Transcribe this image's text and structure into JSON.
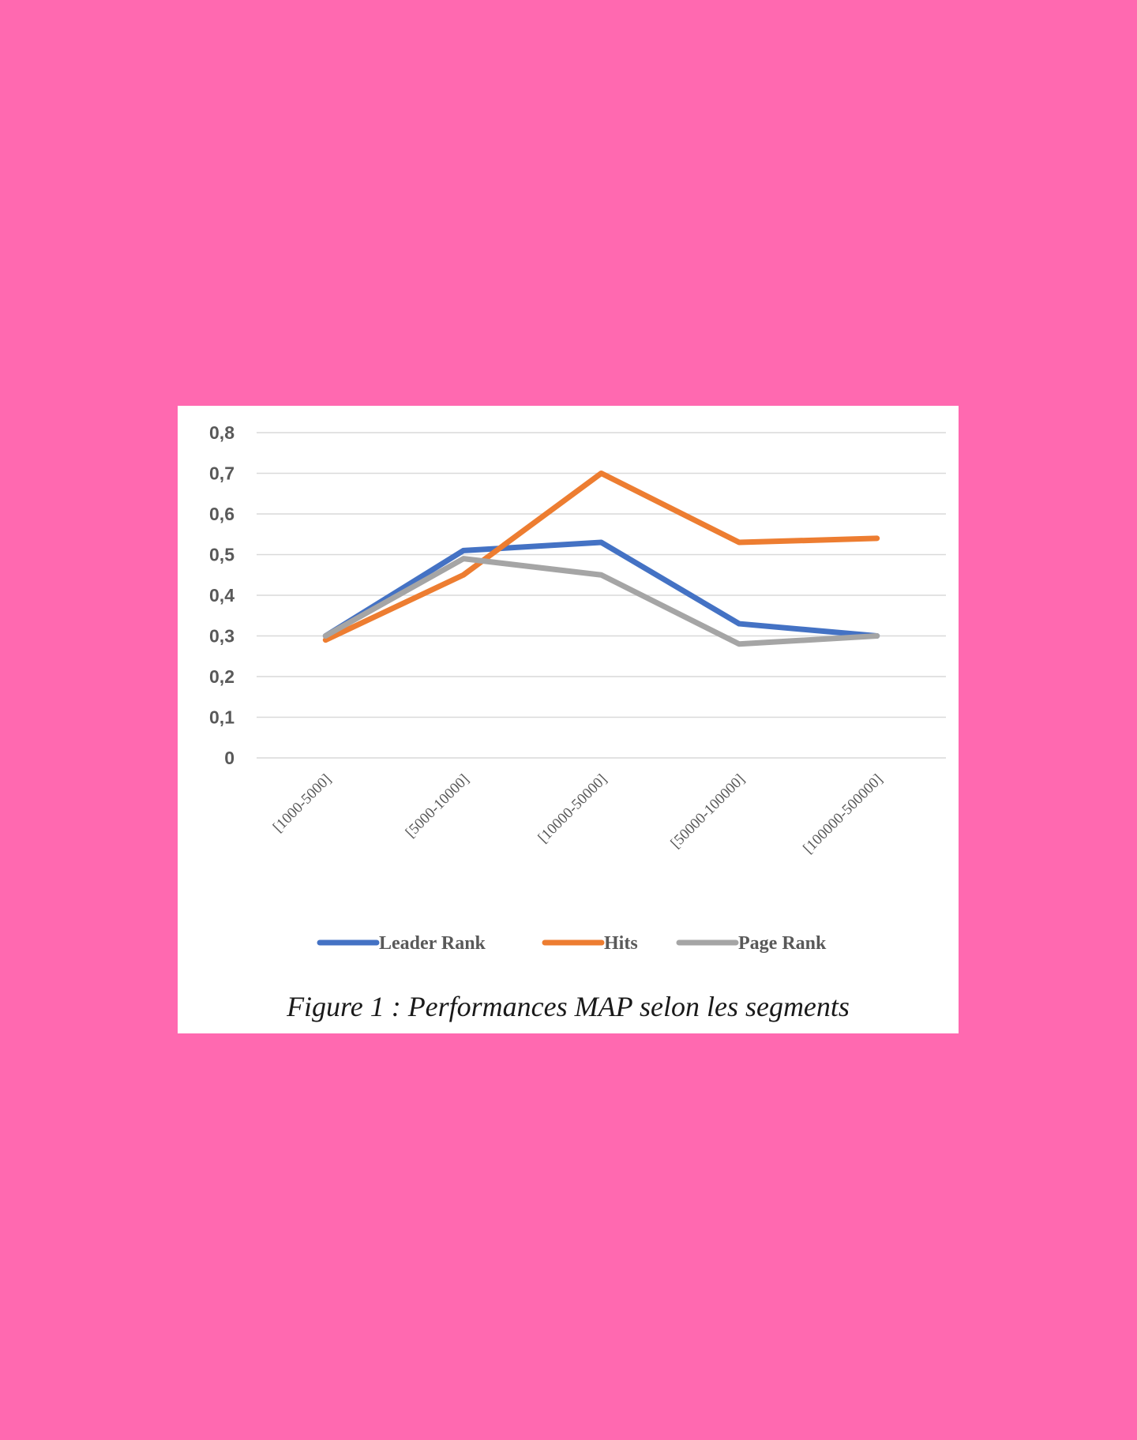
{
  "colors": {
    "page_background": "#ff69b0",
    "panel_background": "#ffffff",
    "gridline": "#d9d9d9",
    "axis_text": "#595959"
  },
  "caption": "Figure 1 : Performances MAP selon les segments",
  "chart_data": {
    "type": "line",
    "title": "",
    "xlabel": "",
    "ylabel": "",
    "categories": [
      "[1000-5000]",
      "[5000-10000]",
      "[10000-50000]",
      "[50000-100000]",
      "[100000-500000]"
    ],
    "ylim": [
      0,
      0.8
    ],
    "yticks": [
      "0",
      "0,1",
      "0,2",
      "0,3",
      "0,4",
      "0,5",
      "0,6",
      "0,7",
      "0,8"
    ],
    "ytick_values": [
      0,
      0.1,
      0.2,
      0.3,
      0.4,
      0.5,
      0.6,
      0.7,
      0.8
    ],
    "grid": true,
    "legend_position": "bottom",
    "series": [
      {
        "name": "Leader Rank",
        "color": "#4472c4",
        "values": [
          0.3,
          0.51,
          0.53,
          0.33,
          0.3
        ]
      },
      {
        "name": "Hits",
        "color": "#ed7d31",
        "values": [
          0.29,
          0.45,
          0.7,
          0.53,
          0.54
        ]
      },
      {
        "name": "Page Rank",
        "color": "#a5a5a5",
        "values": [
          0.3,
          0.49,
          0.45,
          0.28,
          0.3
        ]
      }
    ]
  }
}
